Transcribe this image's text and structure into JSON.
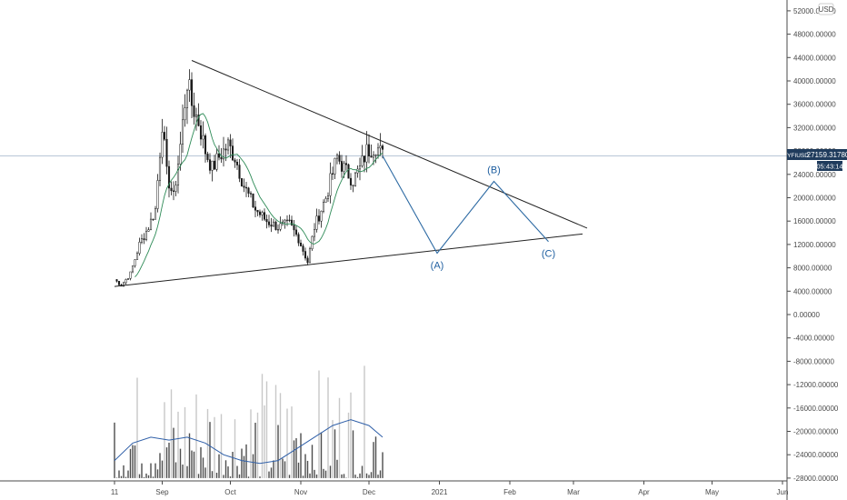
{
  "symbol": "YFIUSD",
  "currency": "USD",
  "last_price": "27159.31780",
  "countdown": "05:43:14",
  "colors": {
    "accent": "#1f3b5c",
    "candle": "#1a1a1a",
    "ma": "#2e8b57",
    "volume": "#4d4d4d",
    "volume_light": "#c8c8c8",
    "volume_ma": "#2f5fa8",
    "trendline": "#222222",
    "wave": "#2d6aa3",
    "crosshair": "#b8c6d6"
  },
  "chart_data": {
    "type": "candlestick",
    "title": "",
    "price_axis": {
      "labels": [
        "52000.00000",
        "48000.00000",
        "44000.00000",
        "40000.00000",
        "36000.00000",
        "32000.00000",
        "28000.00000",
        "24000.00000",
        "20000.00000",
        "16000.00000",
        "12000.00000",
        "8000.00000",
        "4000.00000",
        "0.00000",
        "-4000.00000",
        "-8000.00000",
        "-12000.00000",
        "-16000.00000",
        "-20000.00000",
        "-24000.00000",
        "-28000.00000"
      ],
      "min": -28000,
      "max": 52000,
      "grid": false
    },
    "time_axis": {
      "labels": [
        "11",
        "Sep",
        "Oct",
        "Nov",
        "Dec",
        "2021",
        "Feb",
        "Mar",
        "Apr",
        "May",
        "Jun"
      ]
    },
    "anchors": {
      "2020-08-11": 0,
      "2020-09-01": 21,
      "2020-10-01": 51,
      "2020-11-01": 82,
      "2020-12-01": 112,
      "2021-01-01": 143,
      "2021-02-01": 174,
      "2021-03-01": 202,
      "2021-04-01": 233,
      "2021-05-01": 263,
      "2021-06-01": 294
    },
    "price_path": [
      [
        "2020-08-11",
        6000
      ],
      [
        "2020-08-14",
        5000
      ],
      [
        "2020-08-18",
        7000
      ],
      [
        "2020-08-22",
        12000
      ],
      [
        "2020-08-26",
        15000
      ],
      [
        "2020-08-29",
        18000
      ],
      [
        "2020-09-01",
        33000
      ],
      [
        "2020-09-03",
        24000
      ],
      [
        "2020-09-06",
        20000
      ],
      [
        "2020-09-09",
        29000
      ],
      [
        "2020-09-12",
        40000
      ],
      [
        "2020-09-14",
        36000
      ],
      [
        "2020-09-17",
        33000
      ],
      [
        "2020-09-20",
        28000
      ],
      [
        "2020-09-23",
        25000
      ],
      [
        "2020-09-26",
        27000
      ],
      [
        "2020-09-30",
        29000
      ],
      [
        "2020-10-03",
        27000
      ],
      [
        "2020-10-07",
        22000
      ],
      [
        "2020-10-12",
        18000
      ],
      [
        "2020-10-17",
        16000
      ],
      [
        "2020-10-22",
        15000
      ],
      [
        "2020-10-27",
        15500
      ],
      [
        "2020-10-31",
        13000
      ],
      [
        "2020-11-04",
        9000
      ],
      [
        "2020-11-07",
        15000
      ],
      [
        "2020-11-12",
        20000
      ],
      [
        "2020-11-17",
        27000
      ],
      [
        "2020-11-20",
        25000
      ],
      [
        "2020-11-24",
        23000
      ],
      [
        "2020-11-27",
        25000
      ],
      [
        "2020-11-30",
        28000
      ],
      [
        "2020-12-04",
        29000
      ],
      [
        "2020-12-07",
        27159
      ]
    ],
    "volume_ma_path": [
      [
        0,
        -25000
      ],
      [
        8,
        -22000
      ],
      [
        16,
        -21000
      ],
      [
        24,
        -21500
      ],
      [
        32,
        -21000
      ],
      [
        40,
        -22000
      ],
      [
        48,
        -24000
      ],
      [
        56,
        -25000
      ],
      [
        64,
        -25500
      ],
      [
        72,
        -25000
      ],
      [
        80,
        -23000
      ],
      [
        88,
        -21000
      ],
      [
        96,
        -19000
      ],
      [
        104,
        -18000
      ],
      [
        112,
        -19000
      ],
      [
        118,
        -21000
      ]
    ],
    "trendlines": [
      {
        "name": "upper",
        "points": [
          [
            "2020-09-14",
            43500
          ],
          [
            "2021-03-07",
            14800
          ]
        ]
      },
      {
        "name": "lower",
        "points": [
          [
            "2020-08-11",
            4800
          ],
          [
            "2021-03-05",
            13800
          ]
        ]
      }
    ],
    "wave_projection": {
      "points": [
        [
          "2020-12-07",
          27159
        ],
        [
          "2020-12-31",
          10500
        ],
        [
          "2021-01-25",
          22800
        ],
        [
          "2021-02-18",
          12500
        ]
      ],
      "labels": [
        {
          "text": "(A)",
          "at": [
            "2020-12-31",
            10500
          ],
          "position": "below"
        },
        {
          "text": "(B)",
          "at": [
            "2021-01-25",
            22800
          ],
          "position": "above"
        },
        {
          "text": "(C)",
          "at": [
            "2021-02-18",
            12500
          ],
          "position": "below"
        }
      ]
    }
  }
}
